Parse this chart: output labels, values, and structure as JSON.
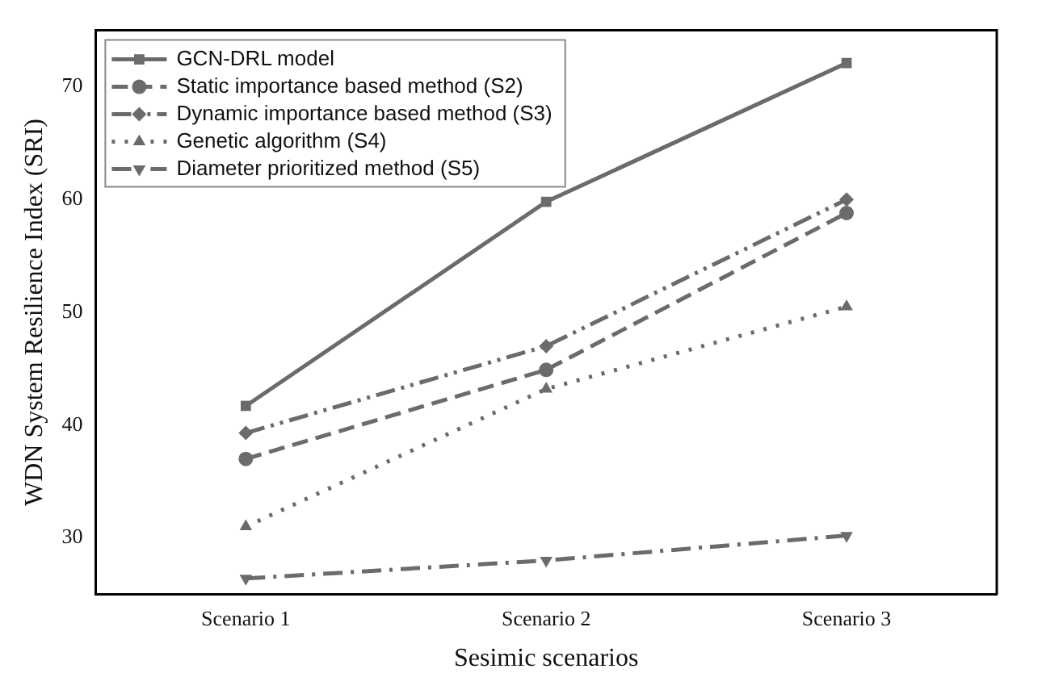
{
  "chart_data": {
    "type": "line",
    "xlabel": "Sesimic scenarios",
    "ylabel": "WDN System Resilience Index (SRI)",
    "categories": [
      "Scenario 1",
      "Scenario 2",
      "Scenario 3"
    ],
    "series": [
      {
        "name": "GCN-DRL model",
        "color": "#6b6b6b",
        "values": [
          41.7,
          59.8,
          72.1
        ],
        "marker": "square",
        "line_style": "solid"
      },
      {
        "name": "Static importance based method (S2)",
        "color": "#6b6b6b",
        "values": [
          37.0,
          44.9,
          58.8
        ],
        "marker": "circle",
        "line_style": "dashed"
      },
      {
        "name": "Dynamic importance based method (S3)",
        "color": "#6b6b6b",
        "values": [
          39.3,
          47.0,
          60.0
        ],
        "marker": "diamond",
        "line_style": "dashdotdot"
      },
      {
        "name": "Genetic algorithm (S4)",
        "color": "#6b6b6b",
        "values": [
          31.0,
          43.2,
          50.5
        ],
        "marker": "triangle",
        "line_style": "dotted"
      },
      {
        "name": "Diameter prioritized method (S5)",
        "color": "#6b6b6b",
        "values": [
          26.4,
          28.0,
          30.2
        ],
        "marker": "triangle-down",
        "line_style": "dashdot"
      }
    ],
    "ylim": [
      25,
      75
    ],
    "yticks": [
      30,
      40,
      50,
      60,
      70
    ],
    "grid": false,
    "legend": "top left"
  }
}
